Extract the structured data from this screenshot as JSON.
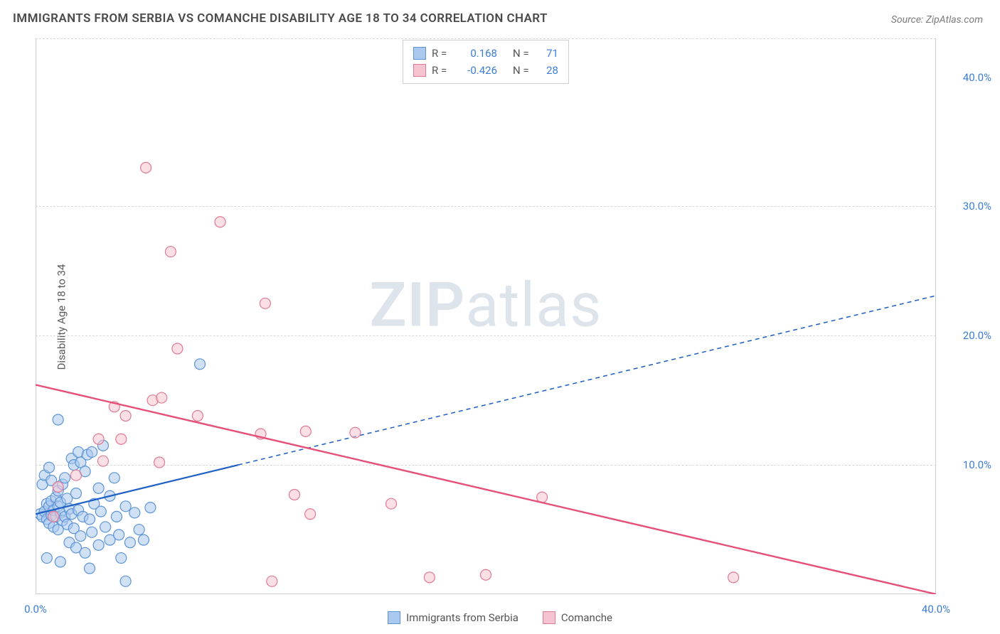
{
  "title": "IMMIGRANTS FROM SERBIA VS COMANCHE DISABILITY AGE 18 TO 34 CORRELATION CHART",
  "source": "Source: ZipAtlas.com",
  "y_axis_label": "Disability Age 18 to 34",
  "watermark_a": "ZIP",
  "watermark_b": "atlas",
  "chart": {
    "type": "scatter-with-regression",
    "xlim": [
      0,
      40
    ],
    "ylim": [
      0,
      43
    ],
    "x_ticks": [
      {
        "v": 0,
        "label": "0.0%"
      },
      {
        "v": 40,
        "label": "40.0%"
      }
    ],
    "y_ticks": [
      {
        "v": 10,
        "label": "10.0%"
      },
      {
        "v": 20,
        "label": "20.0%"
      },
      {
        "v": 30,
        "label": "30.0%"
      },
      {
        "v": 40,
        "label": "40.0%"
      }
    ],
    "grid_lines_y": [
      10,
      20,
      30,
      43
    ],
    "grid_color": "#d8d8d8",
    "background_color": "#ffffff",
    "axis_color": "#cfcfcf",
    "marker_radius": 7.5,
    "marker_stroke_width": 1.2,
    "series": [
      {
        "name": "Immigrants from Serbia",
        "key": "serbia",
        "fill": "#a9c9ef",
        "stroke": "#5d94d6",
        "fill_opacity": 0.55,
        "R": "0.168",
        "N": "71",
        "points": [
          [
            0.2,
            6.2
          ],
          [
            0.3,
            6.0
          ],
          [
            0.4,
            6.4
          ],
          [
            0.5,
            5.8
          ],
          [
            0.5,
            7.0
          ],
          [
            0.6,
            6.8
          ],
          [
            0.6,
            5.5
          ],
          [
            0.7,
            6.1
          ],
          [
            0.7,
            7.2
          ],
          [
            0.8,
            6.5
          ],
          [
            0.8,
            5.2
          ],
          [
            0.9,
            7.5
          ],
          [
            0.9,
            6.0
          ],
          [
            1.0,
            6.8
          ],
          [
            1.0,
            8.0
          ],
          [
            1.0,
            5.0
          ],
          [
            1.1,
            6.3
          ],
          [
            1.1,
            7.1
          ],
          [
            1.2,
            5.7
          ],
          [
            1.2,
            8.5
          ],
          [
            1.3,
            6.0
          ],
          [
            1.3,
            9.0
          ],
          [
            1.4,
            5.4
          ],
          [
            1.4,
            7.4
          ],
          [
            1.5,
            6.6
          ],
          [
            1.5,
            4.0
          ],
          [
            1.6,
            10.5
          ],
          [
            1.6,
            6.2
          ],
          [
            1.7,
            10.0
          ],
          [
            1.7,
            5.1
          ],
          [
            1.8,
            7.8
          ],
          [
            1.8,
            3.6
          ],
          [
            1.9,
            11.0
          ],
          [
            1.9,
            6.5
          ],
          [
            2.0,
            10.2
          ],
          [
            2.0,
            4.5
          ],
          [
            2.1,
            6.0
          ],
          [
            2.2,
            9.5
          ],
          [
            2.2,
            3.2
          ],
          [
            2.3,
            10.8
          ],
          [
            2.4,
            5.8
          ],
          [
            2.5,
            4.8
          ],
          [
            2.5,
            11.0
          ],
          [
            2.6,
            7.0
          ],
          [
            2.8,
            8.2
          ],
          [
            2.8,
            3.8
          ],
          [
            2.9,
            6.4
          ],
          [
            3.0,
            11.5
          ],
          [
            3.1,
            5.2
          ],
          [
            3.3,
            4.2
          ],
          [
            3.3,
            7.6
          ],
          [
            3.6,
            6.0
          ],
          [
            3.7,
            4.6
          ],
          [
            3.8,
            2.8
          ],
          [
            4.0,
            6.8
          ],
          [
            4.0,
            1.0
          ],
          [
            4.2,
            4.0
          ],
          [
            4.4,
            6.3
          ],
          [
            4.6,
            5.0
          ],
          [
            4.8,
            4.2
          ],
          [
            5.1,
            6.7
          ],
          [
            1.0,
            13.5
          ],
          [
            0.3,
            8.5
          ],
          [
            0.4,
            9.2
          ],
          [
            0.6,
            9.8
          ],
          [
            0.7,
            8.8
          ],
          [
            7.3,
            17.8
          ],
          [
            2.4,
            2.0
          ],
          [
            3.5,
            9.0
          ],
          [
            1.1,
            2.5
          ],
          [
            0.5,
            2.8
          ]
        ],
        "regression": {
          "solid_from": [
            0,
            6.2
          ],
          "solid_to": [
            9,
            10.0
          ],
          "dash_from": [
            9,
            10.0
          ],
          "dash_to": [
            40,
            23.1
          ],
          "color": "#1f60c4",
          "width": 2.2,
          "dash": "6,5"
        }
      },
      {
        "name": "Comanche",
        "key": "comanche",
        "fill": "#f6c4d0",
        "stroke": "#e07a94",
        "fill_opacity": 0.55,
        "R": "-0.426",
        "N": "28",
        "points": [
          [
            1.8,
            9.2
          ],
          [
            2.8,
            12.0
          ],
          [
            3.0,
            10.3
          ],
          [
            3.5,
            14.5
          ],
          [
            3.8,
            12.0
          ],
          [
            4.0,
            13.8
          ],
          [
            4.9,
            33.0
          ],
          [
            5.2,
            15.0
          ],
          [
            5.5,
            10.2
          ],
          [
            5.6,
            15.2
          ],
          [
            6.0,
            26.5
          ],
          [
            6.3,
            19.0
          ],
          [
            7.2,
            13.8
          ],
          [
            8.2,
            28.8
          ],
          [
            10.0,
            12.4
          ],
          [
            10.2,
            22.5
          ],
          [
            10.5,
            1.0
          ],
          [
            11.5,
            7.7
          ],
          [
            12.0,
            12.6
          ],
          [
            12.2,
            6.2
          ],
          [
            14.2,
            12.5
          ],
          [
            15.8,
            7.0
          ],
          [
            17.5,
            1.3
          ],
          [
            20.0,
            1.5
          ],
          [
            22.5,
            7.5
          ],
          [
            31.0,
            1.3
          ],
          [
            1.0,
            8.3
          ],
          [
            0.8,
            6.0
          ]
        ],
        "regression": {
          "solid_from": [
            0,
            16.2
          ],
          "solid_to": [
            40,
            0.0
          ],
          "color": "#e64f78",
          "width": 2.4
        }
      }
    ]
  },
  "stats_box": {
    "rows": [
      {
        "swatch_fill": "#a9c9ef",
        "swatch_stroke": "#5d94d6",
        "r_label": "R =",
        "r_val": "0.168",
        "n_label": "N =",
        "n_val": "71"
      },
      {
        "swatch_fill": "#f6c4d0",
        "swatch_stroke": "#e07a94",
        "r_label": "R =",
        "r_val": "-0.426",
        "n_label": "N =",
        "n_val": "28"
      }
    ]
  },
  "bottom_legend": [
    {
      "swatch_fill": "#a9c9ef",
      "swatch_stroke": "#5d94d6",
      "label": "Immigrants from Serbia"
    },
    {
      "swatch_fill": "#f6c4d0",
      "swatch_stroke": "#e07a94",
      "label": "Comanche"
    }
  ]
}
